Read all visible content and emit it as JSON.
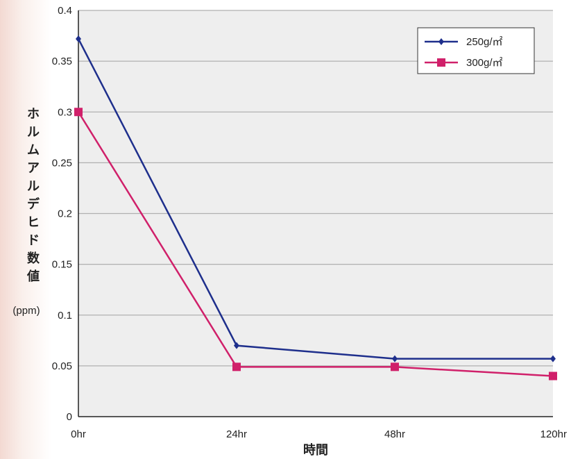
{
  "chart_data": {
    "type": "line",
    "categories": [
      "0hr",
      "24hr",
      "48hr",
      "120hr"
    ],
    "series": [
      {
        "name": "250g/㎡",
        "values": [
          0.372,
          0.07,
          0.057,
          0.057
        ],
        "color": "#1e2f8c",
        "marker": "diamond"
      },
      {
        "name": "300g/㎡",
        "values": [
          0.3,
          0.049,
          0.049,
          0.04
        ],
        "color": "#d0206a",
        "marker": "square"
      }
    ],
    "xlabel": "時間",
    "ylabel": "ホルムアルデヒド数値",
    "yunit": "(ppm)",
    "ylim": [
      0,
      0.4
    ],
    "yticks": [
      "0",
      "0.05",
      "0.1",
      "0.15",
      "0.2",
      "0.25",
      "0.3",
      "0.35",
      "0.4"
    ],
    "grid": true,
    "legend_position": "top-right",
    "plot_background": "#eeeeee",
    "grid_color": "#b0b0b0"
  }
}
